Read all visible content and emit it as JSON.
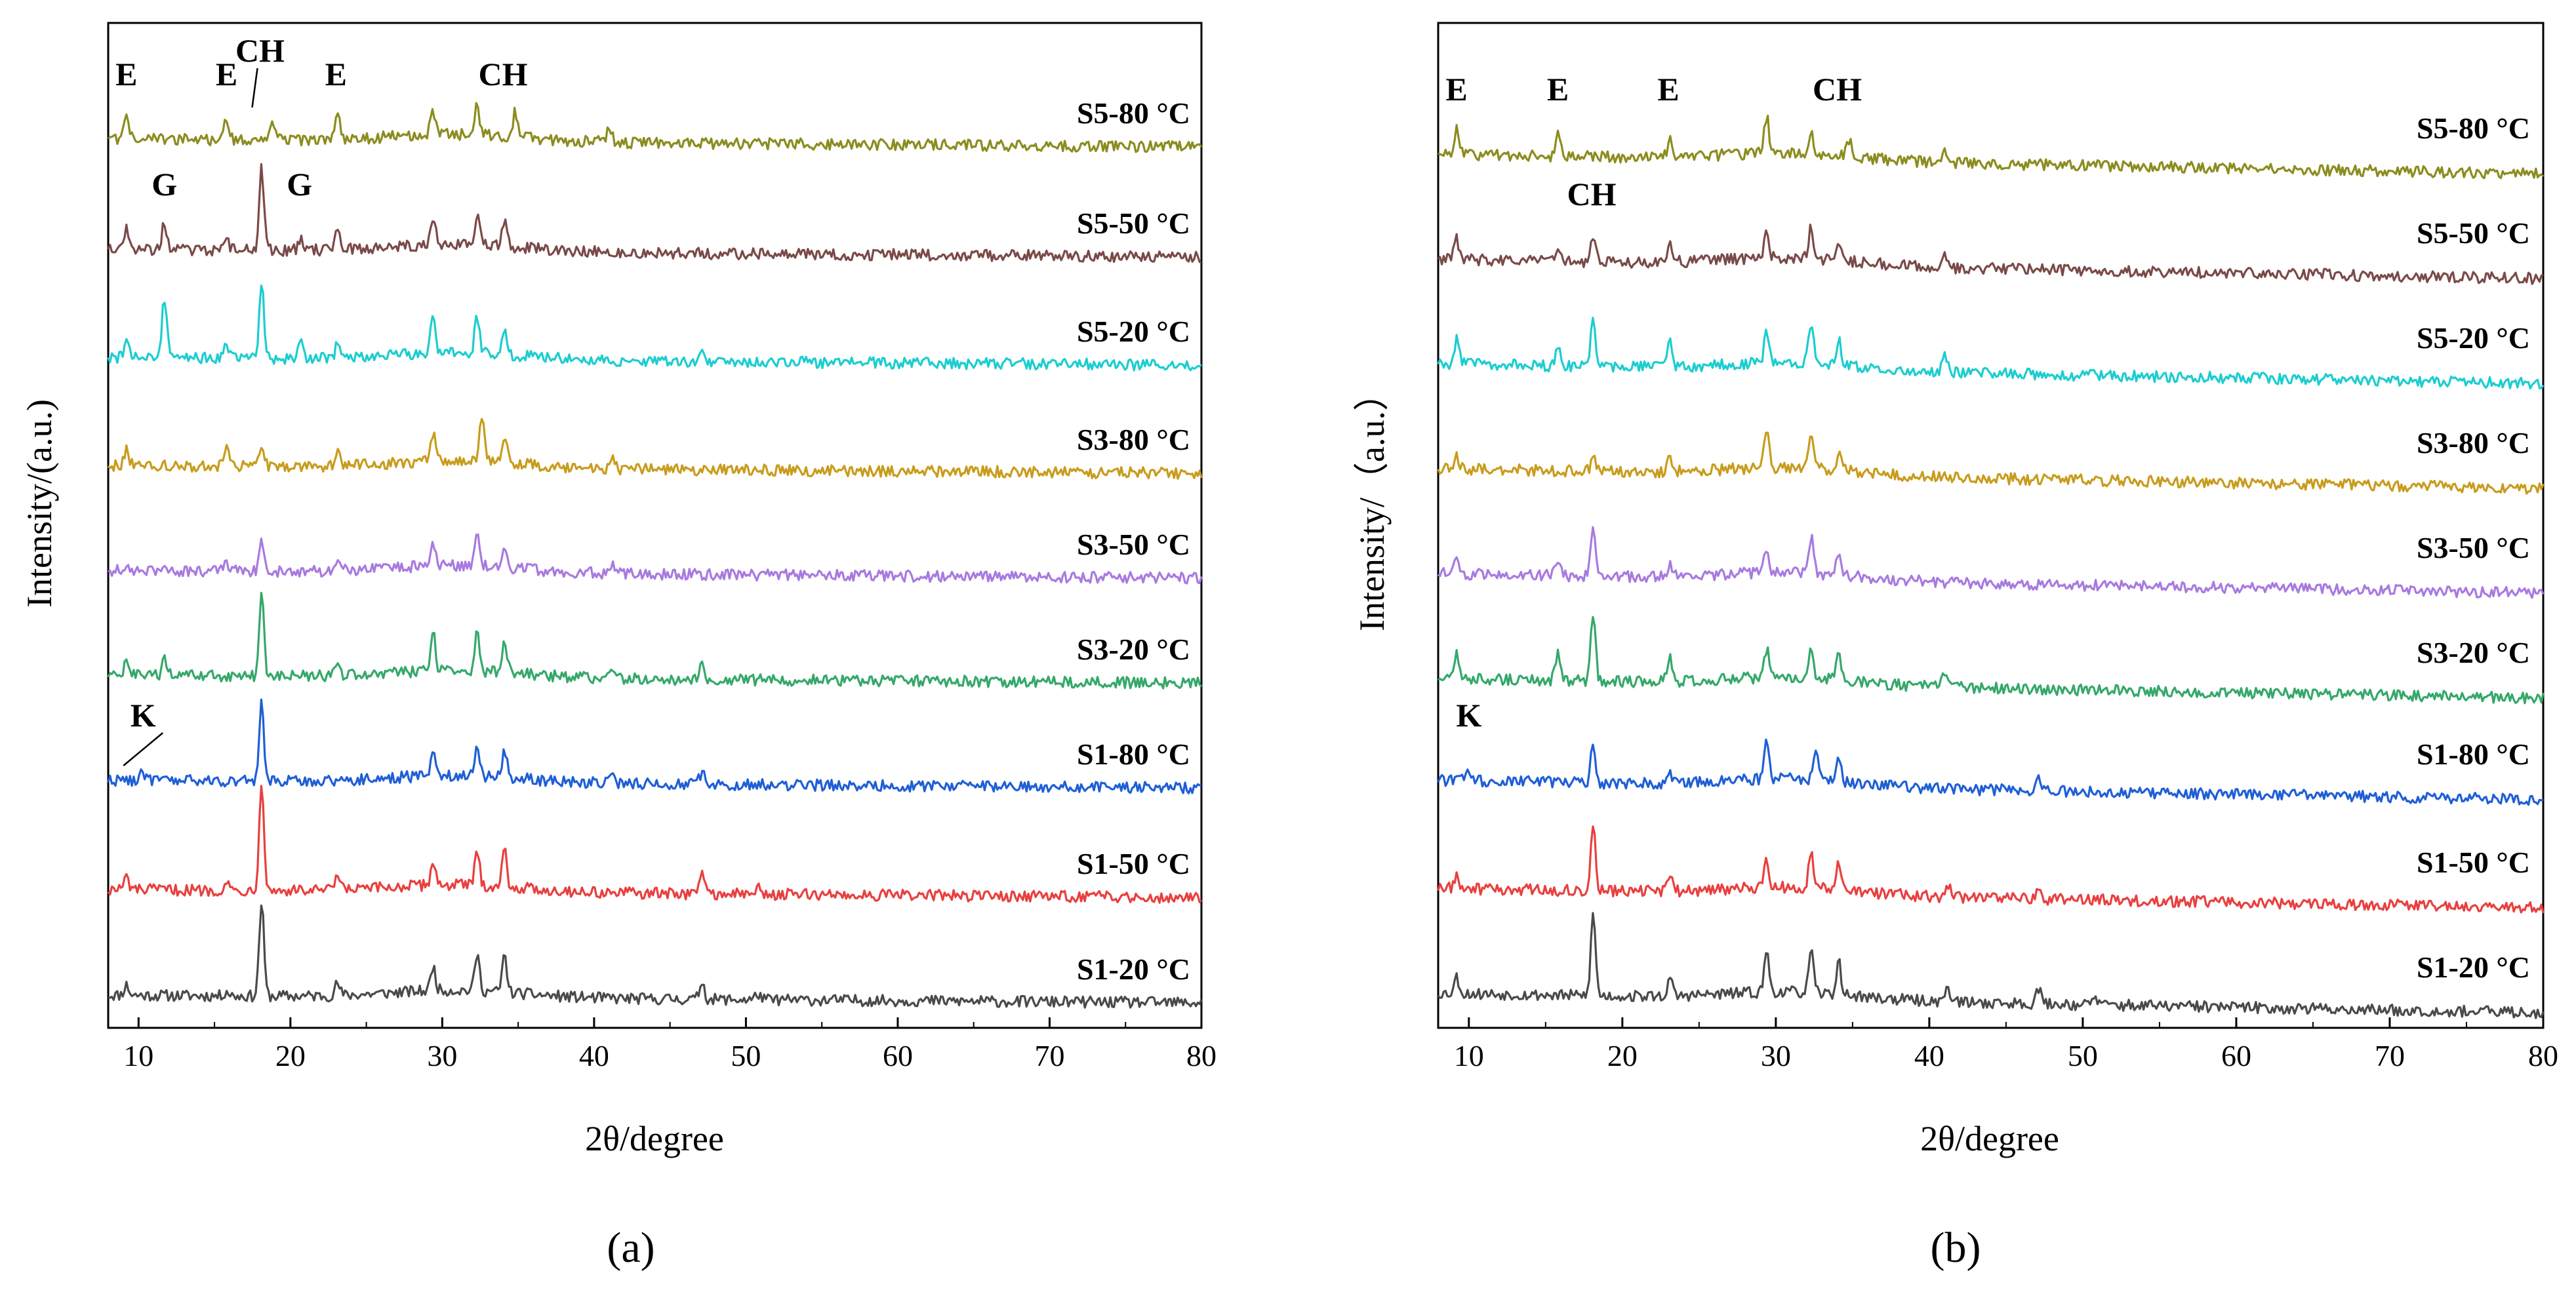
{
  "figure": {
    "panels": [
      {
        "caption": "(a)",
        "ylabel": "Intensity/(a.u.)",
        "xlabel": "2θ/degree",
        "peak_labels": [
          {
            "text": "E",
            "x": 9.2,
            "series": "S5-80 °C"
          },
          {
            "text": "E",
            "x": 15.8,
            "series": "S5-80 °C"
          },
          {
            "text": "CH",
            "x": 18.0,
            "series": "S5-80 °C",
            "arrow": true
          },
          {
            "text": "E",
            "x": 23.0,
            "series": "S5-80 °C"
          },
          {
            "text": "CH",
            "x": 34.0,
            "series": "S5-80 °C"
          },
          {
            "text": "G",
            "x": 11.7,
            "series": "S5-50 °C"
          },
          {
            "text": "G",
            "x": 20.6,
            "series": "S5-50 °C"
          },
          {
            "text": "K",
            "x": 10.3,
            "series": "S1-80 °C",
            "arrow": true
          }
        ]
      },
      {
        "caption": "(b)",
        "ylabel": "Intensity/（a.u.）",
        "xlabel": "2θ/degree",
        "peak_labels": [
          {
            "text": "E",
            "x": 9.2,
            "series": "S5-80 °C"
          },
          {
            "text": "E",
            "x": 15.8,
            "series": "S5-80 °C"
          },
          {
            "text": "E",
            "x": 23.0,
            "series": "S5-80 °C"
          },
          {
            "text": "CH",
            "x": 34.0,
            "series": "S5-80 °C"
          },
          {
            "text": "CH",
            "x": 18.0,
            "series": "S5-50 °C"
          },
          {
            "text": "K",
            "x": 10.0,
            "series": "S1-80 °C"
          }
        ]
      }
    ]
  },
  "chart_data": [
    {
      "type": "line",
      "title": "(a)",
      "xlabel": "2θ/degree",
      "ylabel": "Intensity/(a.u.)",
      "xlim": [
        8,
        80
      ],
      "xticks": [
        10,
        20,
        30,
        40,
        50,
        60,
        70,
        80
      ],
      "yticks": [],
      "grid": false,
      "legend": "inline labels at right of each curve",
      "series": [
        {
          "name": "S1-20 °C",
          "color": "#4a4a4a",
          "peaks": [
            [
              9.2,
              0.25
            ],
            [
              15.8,
              0.12
            ],
            [
              18.1,
              2.3
            ],
            [
              23.1,
              0.3
            ],
            [
              29.4,
              0.6
            ],
            [
              32.3,
              0.9
            ],
            [
              34.1,
              0.9
            ],
            [
              47.1,
              0.45
            ],
            [
              50.8,
              0.15
            ]
          ]
        },
        {
          "name": "S1-50 °C",
          "color": "#e8403f",
          "peaks": [
            [
              9.2,
              0.3
            ],
            [
              15.8,
              0.2
            ],
            [
              18.1,
              2.7
            ],
            [
              23.1,
              0.35
            ],
            [
              29.4,
              0.6
            ],
            [
              32.3,
              0.8
            ],
            [
              34.1,
              0.9
            ],
            [
              47.1,
              0.6
            ],
            [
              50.8,
              0.15
            ]
          ]
        },
        {
          "name": "S1-80 °C",
          "color": "#1f5fd6",
          "peaks": [
            [
              10.2,
              0.25
            ],
            [
              18.1,
              1.9
            ],
            [
              29.4,
              0.6
            ],
            [
              32.3,
              0.8
            ],
            [
              34.1,
              0.7
            ],
            [
              41.2,
              0.3
            ],
            [
              47.1,
              0.3
            ]
          ]
        },
        {
          "name": "S3-20 °C",
          "color": "#35a86a",
          "peaks": [
            [
              9.2,
              0.3
            ],
            [
              11.7,
              0.4
            ],
            [
              18.1,
              2.0
            ],
            [
              23.1,
              0.3
            ],
            [
              29.4,
              0.9
            ],
            [
              32.3,
              0.9
            ],
            [
              34.1,
              0.8
            ],
            [
              41.2,
              0.3
            ],
            [
              47.1,
              0.35
            ]
          ]
        },
        {
          "name": "S3-50 °C",
          "color": "#a87ae0",
          "peaks": [
            [
              15.8,
              0.15
            ],
            [
              18.1,
              0.8
            ],
            [
              23.1,
              0.25
            ],
            [
              29.4,
              0.5
            ],
            [
              32.3,
              0.8
            ],
            [
              34.1,
              0.5
            ],
            [
              41.2,
              0.2
            ]
          ]
        },
        {
          "name": "S3-80 °C",
          "color": "#c89c1c",
          "peaks": [
            [
              9.2,
              0.4
            ],
            [
              15.8,
              0.45
            ],
            [
              18.1,
              0.5
            ],
            [
              23.1,
              0.4
            ],
            [
              29.4,
              0.7
            ],
            [
              32.6,
              1.1
            ],
            [
              34.1,
              0.6
            ],
            [
              41.2,
              0.3
            ]
          ]
        },
        {
          "name": "S5-20 °C",
          "color": "#1ccdd0",
          "peaks": [
            [
              9.2,
              0.35
            ],
            [
              11.7,
              1.5
            ],
            [
              15.8,
              0.3
            ],
            [
              18.1,
              1.9
            ],
            [
              20.7,
              0.5
            ],
            [
              23.1,
              0.3
            ],
            [
              29.4,
              1.0
            ],
            [
              32.3,
              0.9
            ],
            [
              34.1,
              0.6
            ],
            [
              47.1,
              0.3
            ]
          ]
        },
        {
          "name": "S5-50 °C",
          "color": "#7a4a48",
          "peaks": [
            [
              9.2,
              0.5
            ],
            [
              11.7,
              0.7
            ],
            [
              15.8,
              0.3
            ],
            [
              18.1,
              2.0
            ],
            [
              20.7,
              0.3
            ],
            [
              23.1,
              0.45
            ],
            [
              29.4,
              0.6
            ],
            [
              32.3,
              0.7
            ],
            [
              34.1,
              0.6
            ]
          ]
        },
        {
          "name": "S5-80 °C",
          "color": "#8c8c1f",
          "peaks": [
            [
              9.2,
              0.5
            ],
            [
              15.8,
              0.5
            ],
            [
              18.8,
              0.4
            ],
            [
              23.1,
              0.6
            ],
            [
              29.4,
              0.6
            ],
            [
              32.3,
              0.7
            ],
            [
              34.8,
              0.6
            ],
            [
              41.0,
              0.4
            ]
          ]
        }
      ]
    },
    {
      "type": "line",
      "title": "(b)",
      "xlabel": "2θ/degree",
      "ylabel": "Intensity/（a.u.）",
      "xlim": [
        8,
        80
      ],
      "xticks": [
        10,
        20,
        30,
        40,
        50,
        60,
        70,
        80
      ],
      "yticks": [],
      "grid": false,
      "legend": "inline labels at right of each curve",
      "series": [
        {
          "name": "S1-20 °C",
          "color": "#4a4a4a",
          "peaks": [
            [
              9.2,
              0.4
            ],
            [
              18.1,
              2.0
            ],
            [
              23.1,
              0.4
            ],
            [
              29.4,
              1.0
            ],
            [
              32.3,
              1.0
            ],
            [
              34.1,
              0.8
            ],
            [
              41.2,
              0.4
            ],
            [
              47.1,
              0.4
            ],
            [
              50.8,
              0.2
            ]
          ]
        },
        {
          "name": "S1-50 °C",
          "color": "#e8403f",
          "peaks": [
            [
              9.2,
              0.3
            ],
            [
              18.1,
              1.6
            ],
            [
              23.1,
              0.3
            ],
            [
              29.4,
              0.7
            ],
            [
              32.3,
              0.9
            ],
            [
              34.1,
              0.7
            ],
            [
              41.2,
              0.3
            ],
            [
              47.1,
              0.3
            ]
          ]
        },
        {
          "name": "S1-80 °C",
          "color": "#1f5fd6",
          "peaks": [
            [
              10.0,
              0.3
            ],
            [
              18.1,
              1.0
            ],
            [
              23.1,
              0.25
            ],
            [
              29.4,
              0.9
            ],
            [
              32.6,
              0.8
            ],
            [
              34.1,
              0.6
            ],
            [
              47.1,
              0.4
            ]
          ]
        },
        {
          "name": "S3-20 °C",
          "color": "#35a86a",
          "peaks": [
            [
              9.2,
              0.6
            ],
            [
              15.8,
              0.7
            ],
            [
              18.1,
              1.7
            ],
            [
              23.1,
              0.6
            ],
            [
              29.4,
              0.7
            ],
            [
              32.3,
              0.8
            ],
            [
              34.1,
              0.7
            ],
            [
              41.0,
              0.4
            ]
          ]
        },
        {
          "name": "S3-50 °C",
          "color": "#a87ae0",
          "peaks": [
            [
              9.2,
              0.3
            ],
            [
              15.8,
              0.3
            ],
            [
              18.1,
              1.1
            ],
            [
              23.1,
              0.3
            ],
            [
              29.4,
              0.6
            ],
            [
              32.3,
              0.9
            ],
            [
              34.1,
              0.5
            ]
          ]
        },
        {
          "name": "S3-80 °C",
          "color": "#c89c1c",
          "peaks": [
            [
              9.2,
              0.3
            ],
            [
              18.1,
              0.3
            ],
            [
              23.1,
              0.3
            ],
            [
              29.4,
              0.9
            ],
            [
              32.3,
              0.8
            ],
            [
              34.1,
              0.4
            ]
          ]
        },
        {
          "name": "S5-20 °C",
          "color": "#1ccdd0",
          "peaks": [
            [
              9.2,
              0.6
            ],
            [
              15.8,
              0.5
            ],
            [
              18.1,
              1.2
            ],
            [
              23.1,
              0.6
            ],
            [
              29.4,
              0.8
            ],
            [
              32.3,
              1.0
            ],
            [
              34.1,
              0.6
            ],
            [
              41.0,
              0.4
            ]
          ]
        },
        {
          "name": "S5-50 °C",
          "color": "#7a4a48",
          "peaks": [
            [
              9.2,
              0.5
            ],
            [
              15.8,
              0.4
            ],
            [
              18.1,
              0.6
            ],
            [
              23.1,
              0.4
            ],
            [
              29.4,
              0.6
            ],
            [
              32.3,
              0.8
            ],
            [
              34.1,
              0.5
            ],
            [
              41.0,
              0.3
            ]
          ]
        },
        {
          "name": "S5-80 °C",
          "color": "#8c8c1f",
          "peaks": [
            [
              9.2,
              0.6
            ],
            [
              15.8,
              0.5
            ],
            [
              23.1,
              0.4
            ],
            [
              29.4,
              0.9
            ],
            [
              32.3,
              0.5
            ],
            [
              34.8,
              0.4
            ],
            [
              41.0,
              0.3
            ]
          ]
        }
      ]
    }
  ]
}
